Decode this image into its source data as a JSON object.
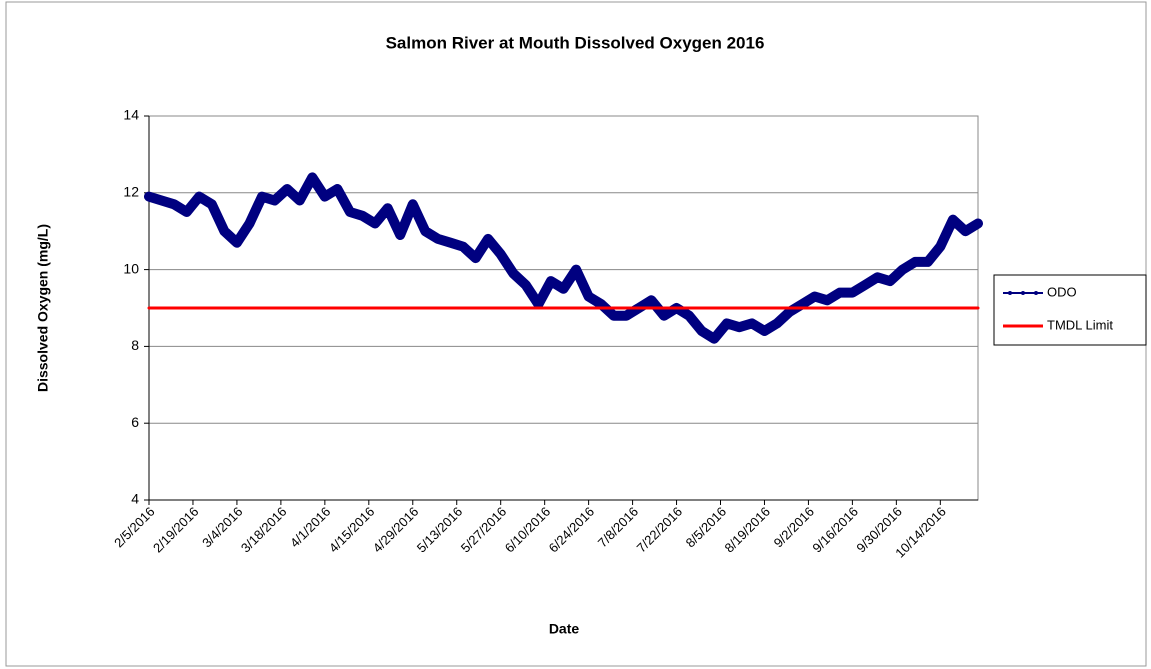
{
  "chart_data": {
    "type": "line",
    "title": "Salmon River at Mouth Dissolved Oxygen 2016",
    "x_label": "Date",
    "y_label": "Dissolved Oxygen (mg/L)",
    "xlim": [
      "2/5/2016",
      "10/26/2016"
    ],
    "xticks": [
      "2/5/2016",
      "2/19/2016",
      "3/4/2016",
      "3/18/2016",
      "4/1/2016",
      "4/15/2016",
      "4/29/2016",
      "5/13/2016",
      "5/27/2016",
      "6/10/2016",
      "6/24/2016",
      "7/8/2016",
      "7/22/2016",
      "8/5/2016",
      "8/19/2016",
      "9/2/2016",
      "9/16/2016",
      "9/30/2016",
      "10/14/2016"
    ],
    "ylim": [
      4,
      14
    ],
    "yticks": [
      4,
      6,
      8,
      10,
      12,
      14
    ],
    "grid": true,
    "legend": "right",
    "series": [
      {
        "name": "ODO",
        "color": "#000080",
        "x": [
          "2/5/2016",
          "2/9/2016",
          "2/13/2016",
          "2/17/2016",
          "2/21/2016",
          "2/25/2016",
          "2/29/2016",
          "3/4/2016",
          "3/8/2016",
          "3/12/2016",
          "3/16/2016",
          "3/20/2016",
          "3/24/2016",
          "3/28/2016",
          "4/1/2016",
          "4/5/2016",
          "4/9/2016",
          "4/13/2016",
          "4/17/2016",
          "4/21/2016",
          "4/25/2016",
          "4/29/2016",
          "5/3/2016",
          "5/7/2016",
          "5/11/2016",
          "5/15/2016",
          "5/19/2016",
          "5/23/2016",
          "5/27/2016",
          "5/31/2016",
          "6/4/2016",
          "6/8/2016",
          "6/12/2016",
          "6/16/2016",
          "6/20/2016",
          "6/24/2016",
          "6/28/2016",
          "7/2/2016",
          "7/6/2016",
          "7/10/2016",
          "7/14/2016",
          "7/18/2016",
          "7/22/2016",
          "7/26/2016",
          "7/30/2016",
          "8/3/2016",
          "8/7/2016",
          "8/11/2016",
          "8/15/2016",
          "8/19/2016",
          "8/23/2016",
          "8/27/2016",
          "8/31/2016",
          "9/4/2016",
          "9/8/2016",
          "9/12/2016",
          "9/16/2016",
          "9/20/2016",
          "9/24/2016",
          "9/28/2016",
          "10/2/2016",
          "10/6/2016",
          "10/10/2016",
          "10/14/2016",
          "10/18/2016",
          "10/22/2016",
          "10/26/2016"
        ],
        "values": [
          11.9,
          11.8,
          11.7,
          11.5,
          11.9,
          11.7,
          11.0,
          10.7,
          11.2,
          11.9,
          11.8,
          12.1,
          11.8,
          12.4,
          11.9,
          12.1,
          11.5,
          11.4,
          11.2,
          11.6,
          10.9,
          11.7,
          11.0,
          10.8,
          10.7,
          10.6,
          10.3,
          10.8,
          10.4,
          9.9,
          9.6,
          9.1,
          9.7,
          9.5,
          10.0,
          9.3,
          9.1,
          8.8,
          8.8,
          9.0,
          9.2,
          8.8,
          9.0,
          8.8,
          8.4,
          8.2,
          8.6,
          8.5,
          8.6,
          8.4,
          8.6,
          8.9,
          9.1,
          9.3,
          9.2,
          9.4,
          9.4,
          9.6,
          9.8,
          9.7,
          10.0,
          10.2,
          10.2,
          10.6,
          11.3,
          11.0,
          11.2
        ]
      },
      {
        "name": "TMDL Limit",
        "color": "#ff0000",
        "x": [
          "2/5/2016",
          "10/26/2016"
        ],
        "values": [
          9,
          9
        ]
      }
    ]
  }
}
